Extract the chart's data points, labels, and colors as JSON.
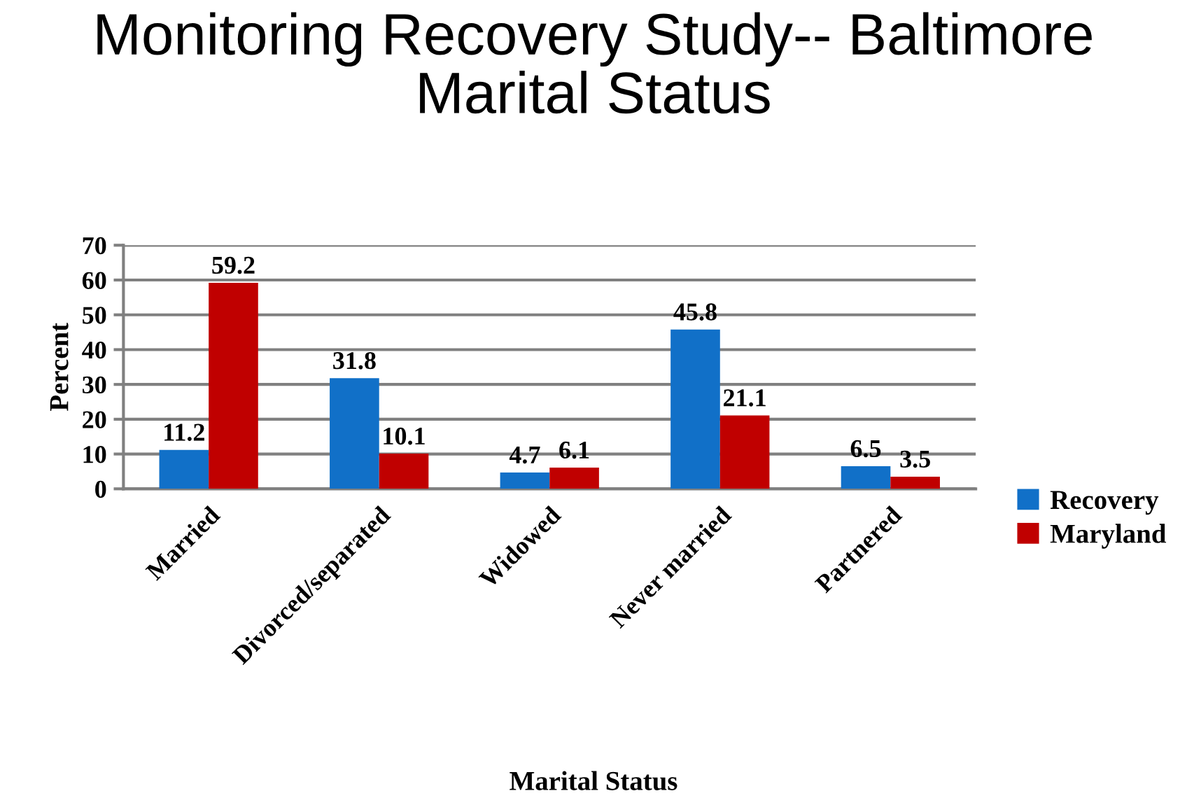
{
  "chart_data": {
    "type": "bar",
    "title": "Monitoring Recovery Study-- Baltimore\nMarital Status",
    "xlabel": "Marital Status",
    "ylabel": "Percent",
    "categories": [
      "Married",
      "Divorced/separated",
      "Widowed",
      "Never married",
      "Partnered"
    ],
    "series": [
      {
        "name": "Recovery",
        "color": "#1170c8",
        "values": [
          11.2,
          31.8,
          4.7,
          45.8,
          6.5
        ]
      },
      {
        "name": "Maryland",
        "color": "#c00000",
        "values": [
          59.2,
          10.1,
          6.1,
          21.1,
          3.5
        ]
      }
    ],
    "ylim": [
      0,
      70
    ],
    "yticks": [
      0,
      10,
      20,
      30,
      40,
      50,
      60,
      70
    ],
    "grid": "y",
    "legend": "right",
    "data_labels": true
  }
}
